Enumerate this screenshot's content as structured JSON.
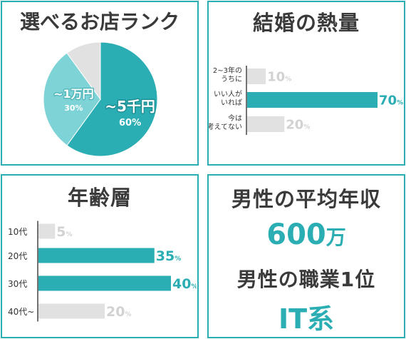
{
  "colors": {
    "accent": "#2aaeb4",
    "light_teal": "#7ed3d6",
    "gray": "#e1e1e1",
    "label_gray": "#d2d2d2",
    "text": "#3a3a3a"
  },
  "rank": {
    "title": "選べるお店ランク"
  },
  "marriage": {
    "title": "結婚の熱量"
  },
  "age": {
    "title": "年齢層"
  },
  "income": {
    "title": "男性の平均年収",
    "value": "600",
    "unit": "万",
    "job_title": "男性の職業1位",
    "job_value": "IT系"
  },
  "chart_data": [
    {
      "type": "pie",
      "title": "選べるお店ランク",
      "slices": [
        {
          "label": "~5千円",
          "value": 60,
          "display": "60%",
          "color": "#2aaeb4"
        },
        {
          "label": "~1万円",
          "value": 30,
          "display": "30%",
          "color": "#7ed3d6"
        },
        {
          "label": "",
          "value": 10,
          "display": "",
          "color": "#e1e1e1"
        }
      ]
    },
    {
      "type": "bar",
      "orientation": "horizontal",
      "title": "結婚の熱量",
      "categories": [
        [
          "2~3年の",
          "うちに"
        ],
        [
          "いい人が",
          "いれば"
        ],
        [
          "今は",
          "考えてない"
        ]
      ],
      "values": [
        10,
        70,
        20
      ],
      "unit": "%",
      "highlight_index": 1,
      "xlim": [
        0,
        70
      ]
    },
    {
      "type": "bar",
      "orientation": "horizontal",
      "title": "年齢層",
      "categories": [
        "10代",
        "20代",
        "30代",
        "40代~"
      ],
      "values": [
        5,
        35,
        40,
        20
      ],
      "unit": "%",
      "highlight_indices": [
        1,
        2
      ],
      "xlim": [
        0,
        40
      ]
    }
  ]
}
